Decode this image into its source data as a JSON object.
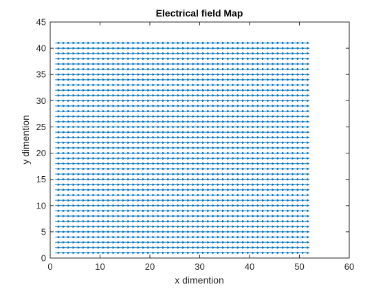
{
  "chart_data": {
    "type": "quiver",
    "title": "Electrical field Map",
    "xlabel": "x dimention",
    "ylabel": "y dimention",
    "xlim": [
      0,
      60
    ],
    "ylim": [
      0,
      45
    ],
    "xticks": [
      0,
      10,
      20,
      30,
      40,
      50,
      60
    ],
    "yticks": [
      0,
      5,
      10,
      15,
      20,
      25,
      30,
      35,
      40,
      45
    ],
    "grid": false,
    "box": true,
    "field": {
      "x_range": [
        1,
        51
      ],
      "y_range": [
        1,
        41
      ],
      "step": 1,
      "direction": "+x",
      "color": "#0072BD"
    }
  }
}
